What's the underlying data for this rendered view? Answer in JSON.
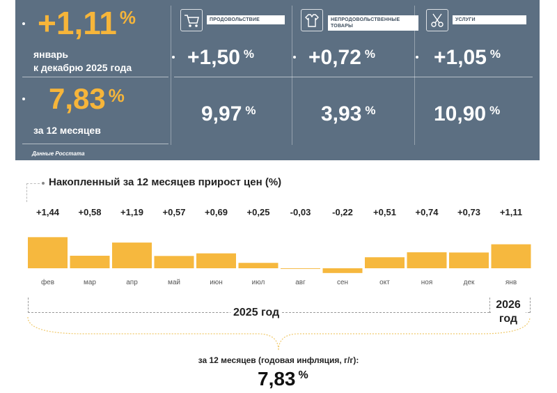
{
  "panel": {
    "monthly": {
      "value": "+1,11",
      "pct": "%",
      "label_line1": "январь",
      "label_line2": "к декабрю 2025 года"
    },
    "annual": {
      "value": "7,83",
      "pct": "%",
      "label": "за 12 месяцев"
    },
    "categories": [
      {
        "name": "ПРОДОВОЛЬСТВИЕ",
        "icon": "shopping-cart-icon",
        "monthly": "+1,50",
        "annual": "9,97"
      },
      {
        "name": "НЕПРОДОВОЛЬСТВЕННЫЕ ТОВАРЫ",
        "icon": "clothing-icon",
        "monthly": "+0,72",
        "annual": "3,93"
      },
      {
        "name": "УСЛУГИ",
        "icon": "scissors-icon",
        "monthly": "+1,05",
        "annual": "10,90"
      }
    ],
    "pct_sign": "%",
    "source": "Данные Росстата"
  },
  "chart_data": {
    "type": "bar",
    "title": "Накопленный за 12 месяцев прирост цен (%)",
    "categories": [
      "фев",
      "мар",
      "апр",
      "май",
      "июн",
      "июл",
      "авг",
      "сен",
      "окт",
      "ноя",
      "дек",
      "янв"
    ],
    "values": [
      1.44,
      0.58,
      1.19,
      0.57,
      0.69,
      0.25,
      -0.03,
      -0.22,
      0.51,
      0.74,
      0.73,
      1.11
    ],
    "value_labels": [
      "+1,44",
      "+0,58",
      "+1,19",
      "+0,57",
      "+0,69",
      "+0,25",
      "-0,03",
      "-0,22",
      "+0,51",
      "+0,74",
      "+0,73",
      "+1,11"
    ],
    "bar_color": "#f6b83e",
    "year_groups": [
      {
        "label": "2025 год",
        "months": 11
      },
      {
        "label_line1": "2026",
        "label_line2": "год",
        "months": 1
      }
    ]
  },
  "footer": {
    "label": "за 12 месяцев (годовая инфляция, г/г):",
    "value": "7,83",
    "pct": "%"
  },
  "colors": {
    "panel": "#5c6f82",
    "accent_orange": "#f6b53a"
  }
}
